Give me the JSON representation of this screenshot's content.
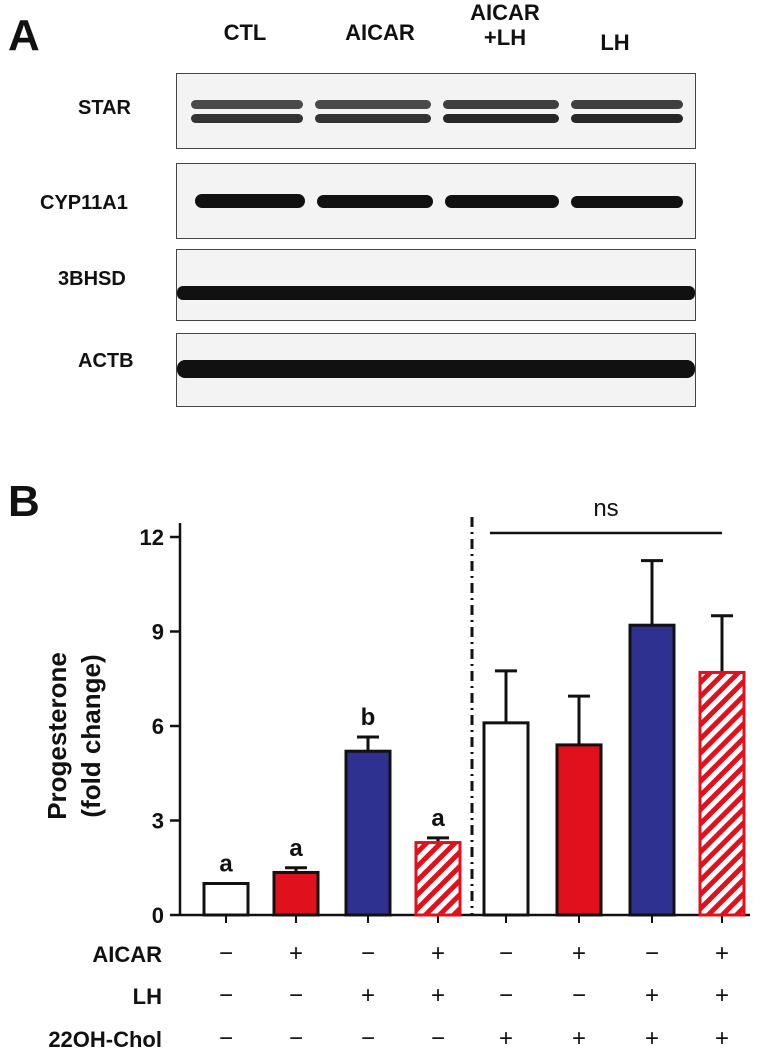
{
  "panel_a": {
    "letter": "A",
    "lanes": [
      "CTL",
      "AICAR",
      "AICAR\n+LH",
      "LH"
    ],
    "blots": [
      "STAR",
      "CYP11A1",
      "3BHSD",
      "ACTB"
    ]
  },
  "panel_b": {
    "letter": "B",
    "ns_label": "ns",
    "conditions": [
      {
        "label": "AICAR",
        "signs": [
          "−",
          "+",
          "−",
          "+",
          "−",
          "+",
          "−",
          "+"
        ]
      },
      {
        "label": "LH",
        "signs": [
          "−",
          "−",
          "+",
          "+",
          "−",
          "−",
          "+",
          "+"
        ]
      },
      {
        "label": "22OH-Chol",
        "signs": [
          "−",
          "−",
          "−",
          "−",
          "+",
          "+",
          "+",
          "+"
        ]
      }
    ]
  },
  "chart_data": {
    "type": "bar",
    "ylabel_lines": [
      "Progesterone",
      "(fold change)"
    ],
    "ylim": [
      0,
      12
    ],
    "yticks": [
      "0",
      "3",
      "6",
      "9",
      "12"
    ],
    "values": [
      1.0,
      1.35,
      5.2,
      2.3,
      6.1,
      5.4,
      9.2,
      7.7
    ],
    "errors": [
      0,
      0.15,
      0.45,
      0.15,
      1.65,
      1.55,
      2.05,
      1.8
    ],
    "significance": [
      "a",
      "a",
      "b",
      "a",
      "",
      "",
      "",
      ""
    ],
    "styles": [
      "white",
      "red",
      "blue",
      "red-hatched",
      "white",
      "red",
      "blue",
      "red-hatched"
    ],
    "colors": {
      "red": "#e0101c",
      "blue": "#2e3190",
      "white": "#ffffff"
    },
    "ns_span": [
      5,
      8
    ]
  }
}
